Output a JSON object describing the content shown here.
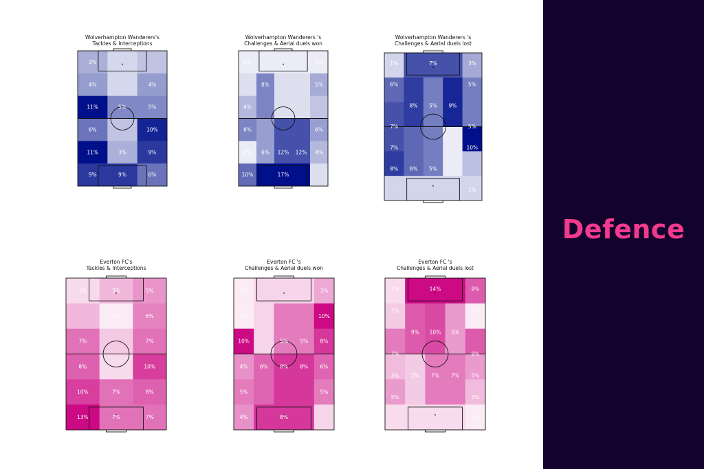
{
  "side_panel": {
    "title": "Defence",
    "bg": "#14022e",
    "accent": "#f23a8e"
  },
  "colors": {
    "wolves": "#00108a",
    "everton": "#cc0a84"
  },
  "chart_data": [
    {
      "type": "heatmap",
      "team": "wolves",
      "title_line1": "Wolverhampton Wanderers's",
      "title_line2": "Tackles & Interceptions",
      "cols": [
        0.27,
        0.27,
        0.27,
        0.19
      ],
      "values": [
        [
          3,
          null,
          null,
          null
        ],
        [
          4,
          null,
          4,
          null
        ],
        [
          11,
          5,
          5,
          null
        ],
        [
          6,
          null,
          10,
          null
        ],
        [
          11,
          3,
          9,
          null
        ],
        [
          9,
          9,
          6,
          null
        ]
      ],
      "grid": [
        [
          3,
          1,
          2
        ],
        [
          4,
          1,
          4
        ],
        [
          11,
          5,
          5
        ],
        [
          6,
          2,
          10
        ],
        [
          11,
          3,
          9
        ],
        [
          9,
          9,
          6
        ]
      ],
      "labels": [
        [
          "3%",
          "",
          ""
        ],
        [
          "4%",
          "",
          "4%"
        ],
        [
          "11%",
          "5%",
          "5%"
        ],
        [
          "6%",
          "",
          "10%"
        ],
        [
          "11%",
          "3%",
          "9%"
        ],
        [
          "9%",
          "9%",
          "6%"
        ]
      ]
    },
    {
      "type": "heatmap",
      "team": "wolves",
      "title_line1": "Wolverhampton Wanderers 's",
      "title_line2": "Challenges & Aerial duels won",
      "grid": [
        [
          0,
          0,
          0,
          0,
          0
        ],
        [
          1,
          8,
          1,
          1,
          5
        ],
        [
          4,
          8,
          1,
          1,
          3
        ],
        [
          8,
          6,
          12,
          12,
          6
        ],
        [
          0,
          6,
          12,
          12,
          4
        ],
        [
          10,
          17,
          17,
          17,
          1
        ]
      ],
      "labels": [
        [
          "0%",
          "",
          "",
          "",
          "0%"
        ],
        [
          "",
          "8%",
          "",
          "",
          "5%"
        ],
        [
          "4%",
          "",
          "",
          "",
          ""
        ],
        [
          "8%",
          "",
          "",
          "",
          "6%"
        ],
        [
          "0%",
          "6%",
          "12%",
          "12%",
          "4%"
        ],
        [
          "10%",
          "",
          "17%",
          "",
          ""
        ]
      ]
    },
    {
      "type": "heatmap",
      "team": "wolves",
      "title_line1": "Wolverhampton Wanderers 's",
      "title_line2": "Challenges & Aerial duels lost",
      "grid": [
        [
          1,
          7,
          7,
          7,
          3
        ],
        [
          6,
          8,
          5,
          9,
          5
        ],
        [
          7,
          8,
          5,
          9,
          5
        ],
        [
          7,
          6,
          5,
          0,
          10
        ],
        [
          8,
          6,
          5,
          0,
          2
        ],
        [
          1,
          1,
          1,
          1,
          1
        ]
      ],
      "labels": [
        [
          "1%",
          "",
          "7%",
          "",
          "3%"
        ],
        [
          "6%",
          "",
          "",
          "",
          "5%"
        ],
        [
          "",
          "8%",
          "5%",
          "9%",
          ""
        ],
        [
          "7%",
          "",
          "",
          "",
          "5%"
        ],
        [
          "7%",
          "",
          "",
          "",
          "10%"
        ],
        [
          "8%",
          "6%",
          "5%",
          "",
          ""
        ],
        [
          "",
          "",
          "",
          "",
          "1%"
        ]
      ]
    },
    {
      "type": "heatmap",
      "team": "everton",
      "title_line1": "Everton FC's",
      "title_line2": "Tackles & Interceptions",
      "grid": [
        [
          1,
          3,
          5
        ],
        [
          3,
          0,
          6
        ],
        [
          7,
          2,
          7
        ],
        [
          8,
          1,
          10
        ],
        [
          10,
          7,
          8
        ],
        [
          13,
          7,
          7
        ]
      ],
      "labels": [
        [
          "1%",
          "3%",
          "5%"
        ],
        [
          "",
          "0%",
          "6%"
        ],
        [
          "7%",
          "",
          "7%"
        ],
        [
          "8%",
          "",
          "10%"
        ],
        [
          "10%",
          "7%",
          "8%"
        ],
        [
          "13%",
          "7%",
          "7%"
        ]
      ]
    },
    {
      "type": "heatmap",
      "team": "everton",
      "title_line1": "Everton FC 's",
      "title_line2": "Challenges & Aerial duels won",
      "grid": [
        [
          0,
          1,
          1,
          1,
          3
        ],
        [
          0,
          1,
          5,
          5,
          10
        ],
        [
          10,
          1,
          5,
          5,
          8
        ],
        [
          4,
          6,
          8,
          8,
          6
        ],
        [
          5,
          6,
          8,
          8,
          5
        ],
        [
          4,
          8,
          8,
          8,
          1
        ]
      ],
      "labels": [
        [
          "0%",
          "",
          "",
          "",
          "3%"
        ],
        [
          "0%",
          "",
          "",
          "",
          "10%"
        ],
        [
          "10%",
          "",
          "5%",
          "5%",
          "8%"
        ],
        [
          "4%",
          "6%",
          "8%",
          "8%",
          "6%"
        ],
        [
          "5%",
          "",
          "",
          "",
          "5%"
        ],
        [
          "4%",
          "",
          "8%",
          "",
          ""
        ]
      ]
    },
    {
      "type": "heatmap",
      "team": "everton",
      "title_line1": "Everton FC 's",
      "title_line2": "Challenges & Aerial duels lost",
      "grid": [
        [
          1,
          14,
          14,
          14,
          9
        ],
        [
          2,
          9,
          10,
          5,
          0
        ],
        [
          7,
          9,
          10,
          5,
          9
        ],
        [
          3,
          2,
          7,
          7,
          5
        ],
        [
          5,
          2,
          7,
          7,
          3
        ],
        [
          1,
          1,
          1,
          1,
          0
        ]
      ],
      "labels": [
        [
          "1%",
          "",
          "14%",
          "",
          "9%"
        ],
        [
          "2%",
          "",
          "",
          "",
          "0%"
        ],
        [
          "",
          "9%",
          "10%",
          "5%",
          ""
        ],
        [
          "7%",
          "",
          "",
          "",
          "9%"
        ],
        [
          "3%",
          "2%",
          "7%",
          "7%",
          "5%"
        ],
        [
          "5%",
          "",
          "",
          "",
          "3%"
        ],
        [
          "",
          "",
          "",
          "",
          "0%"
        ]
      ]
    }
  ]
}
